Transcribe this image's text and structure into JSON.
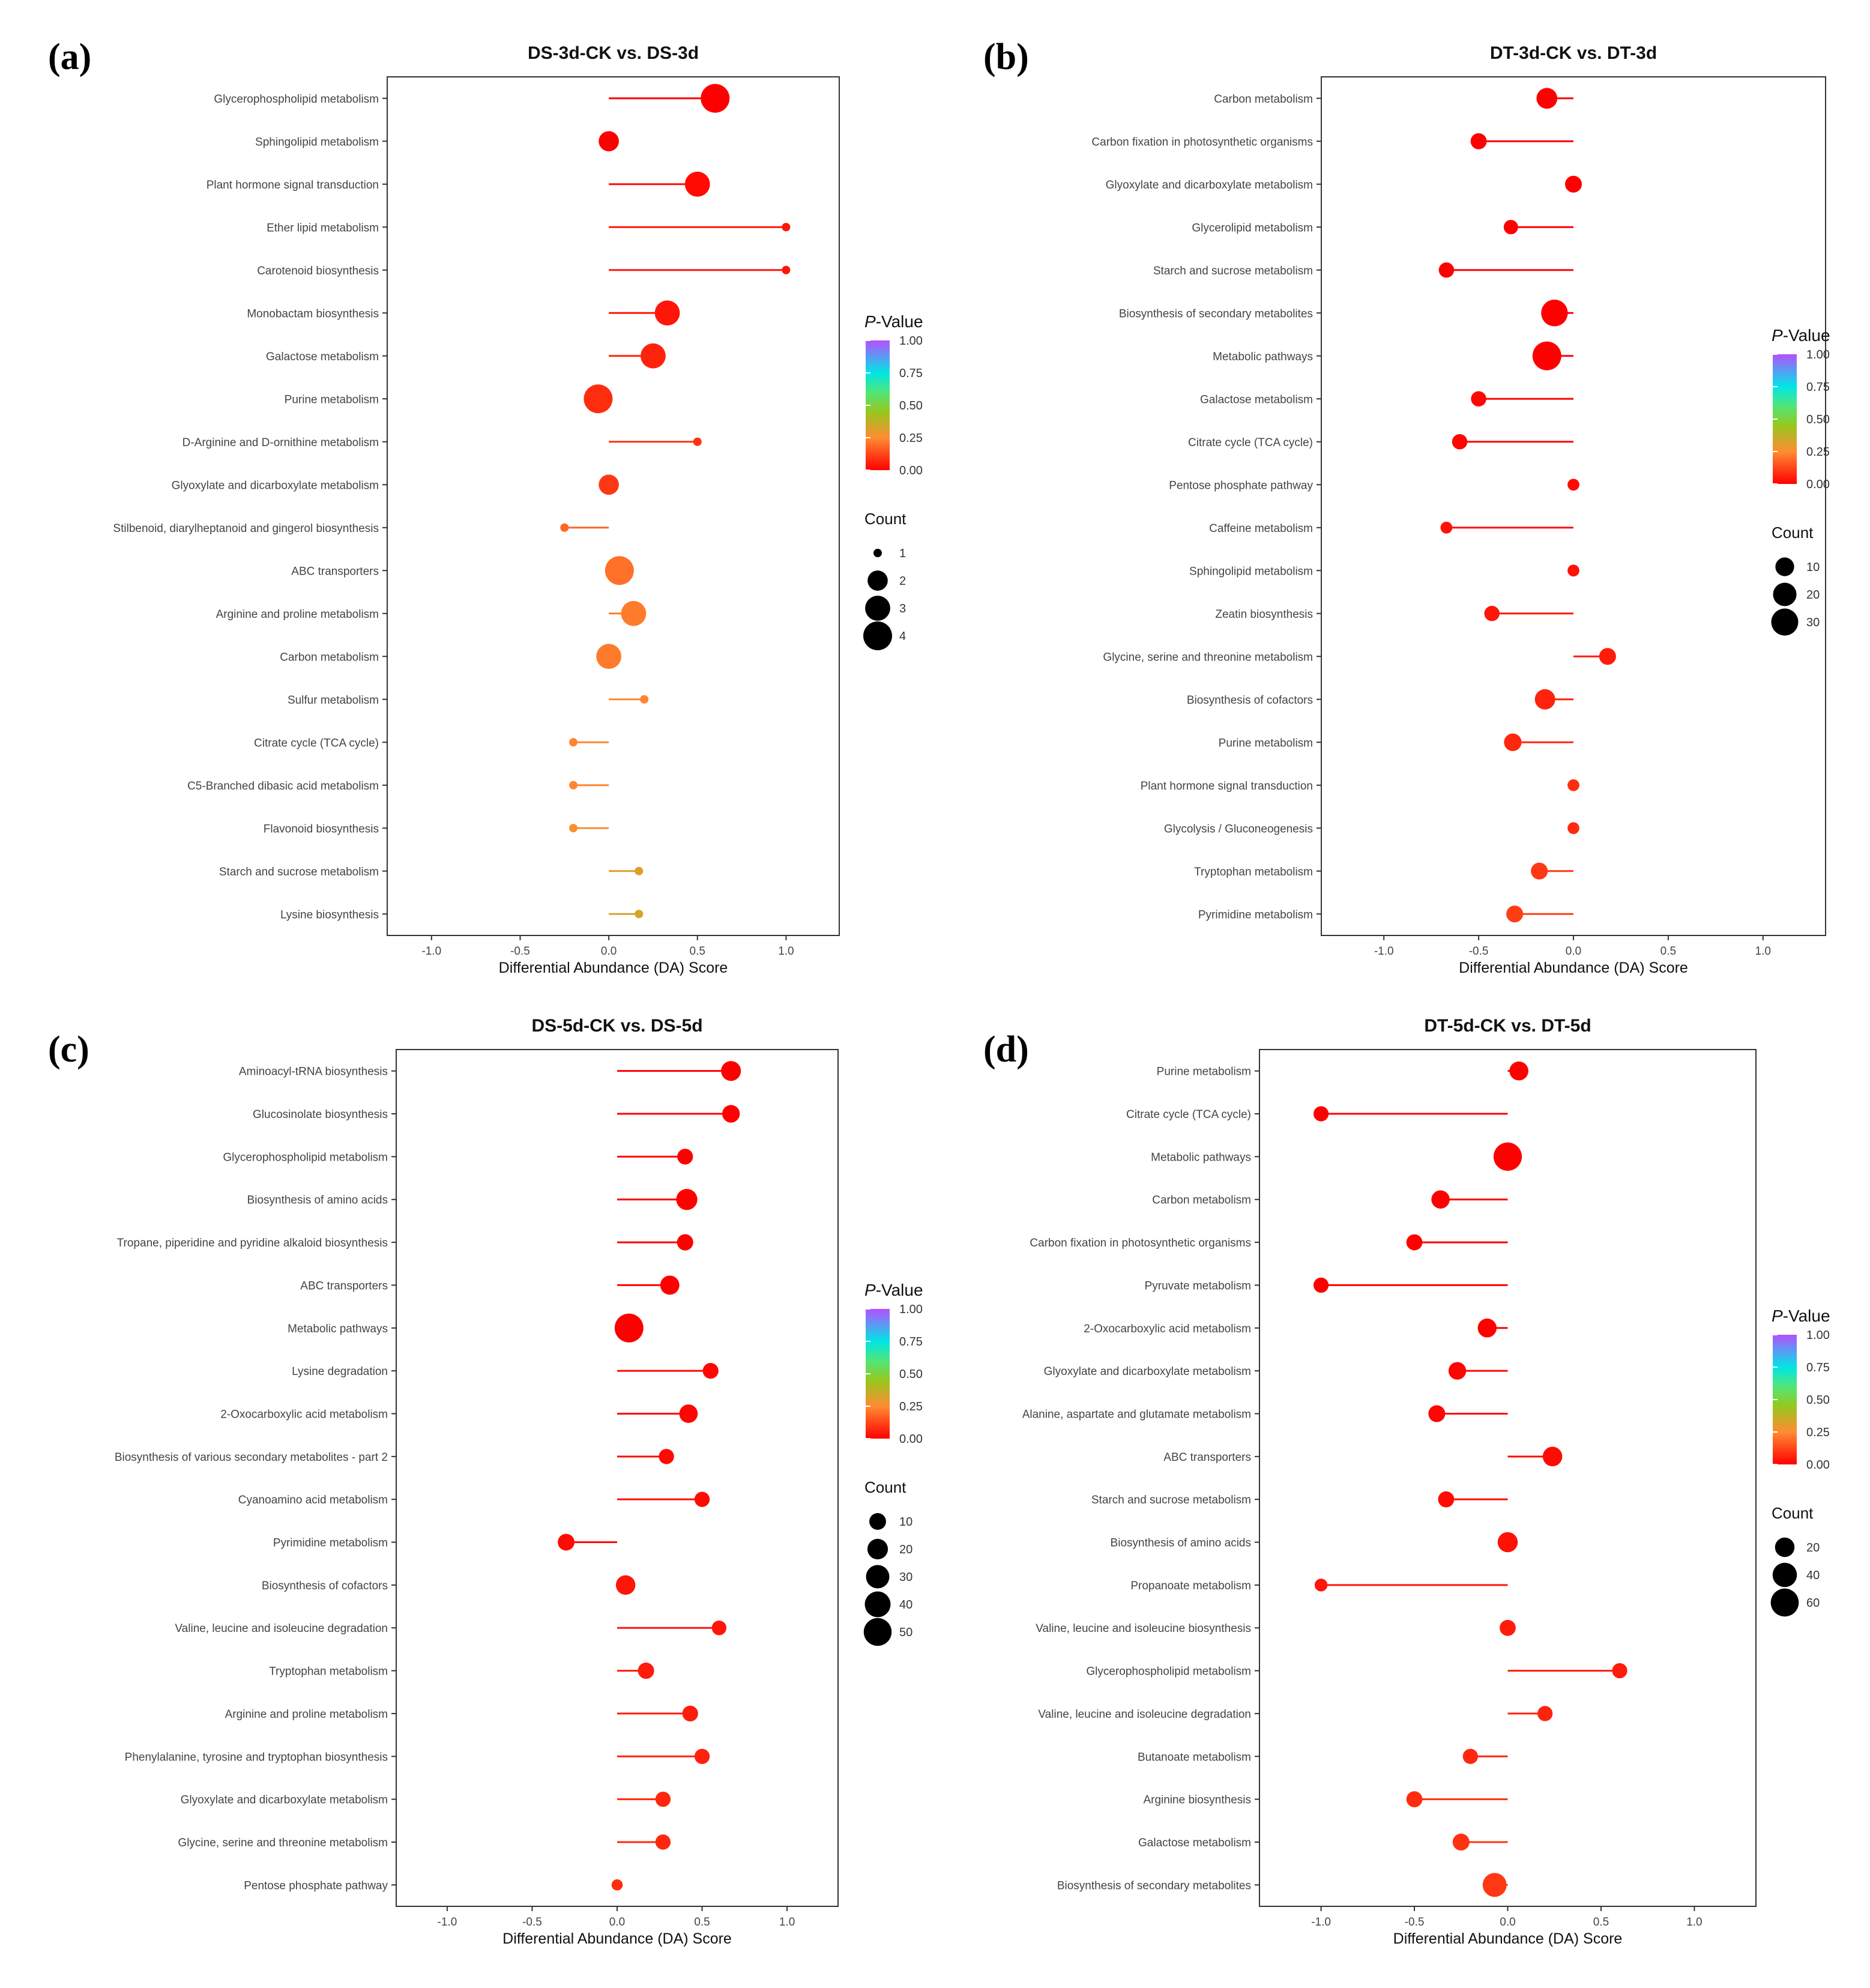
{
  "chart_data": [
    {
      "panel_label": "(a)",
      "type": "lollipop",
      "title": "DS-3d-CK vs. DS-3d",
      "xlabel": "Differential Abundance (DA) Score",
      "xlim": [
        -1.25,
        1.3
      ],
      "xticks": [
        -1.0,
        -0.5,
        0.0,
        0.5,
        1.0
      ],
      "xtick_labels": [
        "-1.0",
        "-0.5",
        "0.0",
        "0.5",
        "1.0"
      ],
      "legend": {
        "pvalue_title_italic": "P",
        "pvalue_title_rest": "-Value",
        "pvalue_ticks": [
          "1.00",
          "0.75",
          "0.50",
          "0.25",
          "0.00"
        ],
        "count_title": "Count",
        "count_values": [
          1,
          2,
          3,
          4
        ],
        "count_labels": [
          "1",
          "2",
          "3",
          "4"
        ],
        "size_range": [
          1,
          4
        ]
      },
      "points": [
        {
          "pathway": "Glycerophospholipid metabolism",
          "da": 0.6,
          "pvalue": 0.0,
          "count": 4
        },
        {
          "pathway": "Sphingolipid metabolism",
          "da": 0.0,
          "pvalue": 0.0,
          "count": 2
        },
        {
          "pathway": "Plant hormone signal transduction",
          "da": 0.5,
          "pvalue": 0.02,
          "count": 3
        },
        {
          "pathway": "Ether lipid metabolism",
          "da": 1.0,
          "pvalue": 0.04,
          "count": 1
        },
        {
          "pathway": "Carotenoid biosynthesis",
          "da": 1.0,
          "pvalue": 0.04,
          "count": 1
        },
        {
          "pathway": "Monobactam biosynthesis",
          "da": 0.33,
          "pvalue": 0.04,
          "count": 3
        },
        {
          "pathway": "Galactose metabolism",
          "da": 0.25,
          "pvalue": 0.06,
          "count": 3
        },
        {
          "pathway": "Purine metabolism",
          "da": -0.06,
          "pvalue": 0.08,
          "count": 4
        },
        {
          "pathway": "D-Arginine and D-ornithine metabolism",
          "da": 0.5,
          "pvalue": 0.09,
          "count": 1
        },
        {
          "pathway": "Glyoxylate and dicarboxylate metabolism",
          "da": 0.0,
          "pvalue": 0.1,
          "count": 2
        },
        {
          "pathway": "Stilbenoid, diarylheptanoid and gingerol biosynthesis",
          "da": -0.25,
          "pvalue": 0.18,
          "count": 1
        },
        {
          "pathway": "ABC transporters",
          "da": 0.06,
          "pvalue": 0.2,
          "count": 4
        },
        {
          "pathway": "Arginine and proline metabolism",
          "da": 0.14,
          "pvalue": 0.22,
          "count": 3
        },
        {
          "pathway": "Carbon metabolism",
          "da": 0.0,
          "pvalue": 0.22,
          "count": 3
        },
        {
          "pathway": "Sulfur metabolism",
          "da": 0.2,
          "pvalue": 0.24,
          "count": 1
        },
        {
          "pathway": "Citrate cycle (TCA cycle)",
          "da": -0.2,
          "pvalue": 0.24,
          "count": 1
        },
        {
          "pathway": "C5-Branched dibasic acid metabolism",
          "da": -0.2,
          "pvalue": 0.24,
          "count": 1
        },
        {
          "pathway": "Flavonoid biosynthesis",
          "da": -0.2,
          "pvalue": 0.26,
          "count": 1
        },
        {
          "pathway": "Starch and sucrose metabolism",
          "da": 0.17,
          "pvalue": 0.32,
          "count": 1
        },
        {
          "pathway": "Lysine biosynthesis",
          "da": 0.17,
          "pvalue": 0.33,
          "count": 1
        }
      ]
    },
    {
      "panel_label": "(b)",
      "type": "lollipop",
      "title": "DT-3d-CK vs. DT-3d",
      "xlabel": "Differential Abundance (DA) Score",
      "xlim": [
        -1.33,
        1.33
      ],
      "xticks": [
        -1.0,
        -0.5,
        0.0,
        0.5,
        1.0
      ],
      "xtick_labels": [
        "-1.0",
        "-0.5",
        "0.0",
        "0.5",
        "1.0"
      ],
      "legend": {
        "pvalue_title_italic": "P",
        "pvalue_title_rest": "-Value",
        "pvalue_ticks": [
          "1.00",
          "0.75",
          "0.50",
          "0.25",
          "0.00"
        ],
        "count_title": "Count",
        "count_values": [
          10,
          20,
          30
        ],
        "count_labels": [
          "10",
          "20",
          "30"
        ],
        "size_range": [
          1,
          36
        ]
      },
      "points": [
        {
          "pathway": "Carbon metabolism",
          "da": -0.14,
          "pvalue": 0.0,
          "count": 14
        },
        {
          "pathway": "Carbon fixation in photosynthetic organisms",
          "da": -0.5,
          "pvalue": 0.0,
          "count": 6
        },
        {
          "pathway": "Glyoxylate and dicarboxylate metabolism",
          "da": 0.0,
          "pvalue": 0.0,
          "count": 7
        },
        {
          "pathway": "Glycerolipid metabolism",
          "da": -0.33,
          "pvalue": 0.0,
          "count": 4
        },
        {
          "pathway": "Starch and sucrose metabolism",
          "da": -0.67,
          "pvalue": 0.0,
          "count": 5
        },
        {
          "pathway": "Biosynthesis of secondary metabolites",
          "da": -0.1,
          "pvalue": 0.0,
          "count": 29
        },
        {
          "pathway": "Metabolic pathways",
          "da": -0.14,
          "pvalue": 0.0,
          "count": 36
        },
        {
          "pathway": "Galactose metabolism",
          "da": -0.5,
          "pvalue": 0.01,
          "count": 5
        },
        {
          "pathway": "Citrate cycle (TCA cycle)",
          "da": -0.6,
          "pvalue": 0.01,
          "count": 5
        },
        {
          "pathway": "Pentose phosphate pathway",
          "da": 0.0,
          "pvalue": 0.02,
          "count": 2
        },
        {
          "pathway": "Caffeine metabolism",
          "da": -0.67,
          "pvalue": 0.03,
          "count": 2
        },
        {
          "pathway": "Sphingolipid metabolism",
          "da": 0.0,
          "pvalue": 0.03,
          "count": 2
        },
        {
          "pathway": "Zeatin biosynthesis",
          "da": -0.43,
          "pvalue": 0.04,
          "count": 5
        },
        {
          "pathway": "Glycine, serine and threonine metabolism",
          "da": 0.18,
          "pvalue": 0.05,
          "count": 7
        },
        {
          "pathway": "Biosynthesis of cofactors",
          "da": -0.15,
          "pvalue": 0.06,
          "count": 13
        },
        {
          "pathway": "Purine metabolism",
          "da": -0.32,
          "pvalue": 0.07,
          "count": 8
        },
        {
          "pathway": "Plant hormone signal transduction",
          "da": 0.0,
          "pvalue": 0.08,
          "count": 2
        },
        {
          "pathway": "Glycolysis / Gluconeogenesis",
          "da": 0.0,
          "pvalue": 0.08,
          "count": 2
        },
        {
          "pathway": "Tryptophan metabolism",
          "da": -0.18,
          "pvalue": 0.1,
          "count": 7
        },
        {
          "pathway": "Pyrimidine metabolism",
          "da": -0.31,
          "pvalue": 0.11,
          "count": 7
        }
      ]
    },
    {
      "panel_label": "(c)",
      "type": "lollipop",
      "title": "DS-5d-CK vs. DS-5d",
      "xlabel": "Differential Abundance (DA) Score",
      "xlim": [
        -1.3,
        1.3
      ],
      "xticks": [
        -1.0,
        -0.5,
        0.0,
        0.5,
        1.0
      ],
      "xtick_labels": [
        "-1.0",
        "-0.5",
        "0.0",
        "0.5",
        "1.0"
      ],
      "legend": {
        "pvalue_title_italic": "P",
        "pvalue_title_rest": "-Value",
        "pvalue_ticks": [
          "1.00",
          "0.75",
          "0.50",
          "0.25",
          "0.00"
        ],
        "count_title": "Count",
        "count_values": [
          10,
          20,
          30,
          40,
          50
        ],
        "count_labels": [
          "10",
          "20",
          "30",
          "40",
          "50"
        ],
        "size_range": [
          1,
          55
        ]
      },
      "points": [
        {
          "pathway": "Aminoacyl-tRNA biosynthesis",
          "da": 0.67,
          "pvalue": 0.0,
          "count": 18
        },
        {
          "pathway": "Glucosinolate biosynthesis",
          "da": 0.67,
          "pvalue": 0.0,
          "count": 12
        },
        {
          "pathway": "Glycerophospholipid metabolism",
          "da": 0.4,
          "pvalue": 0.0,
          "count": 8
        },
        {
          "pathway": "Biosynthesis of amino acids",
          "da": 0.41,
          "pvalue": 0.0,
          "count": 22
        },
        {
          "pathway": "Tropane, piperidine and pyridine alkaloid biosynthesis",
          "da": 0.4,
          "pvalue": 0.0,
          "count": 9
        },
        {
          "pathway": "ABC transporters",
          "da": 0.31,
          "pvalue": 0.0,
          "count": 16
        },
        {
          "pathway": "Metabolic pathways",
          "da": 0.07,
          "pvalue": 0.0,
          "count": 55
        },
        {
          "pathway": "Lysine degradation",
          "da": 0.55,
          "pvalue": 0.01,
          "count": 8
        },
        {
          "pathway": "2-Oxocarboxylic acid metabolism",
          "da": 0.42,
          "pvalue": 0.01,
          "count": 14
        },
        {
          "pathway": "Biosynthesis of various secondary metabolites - part 2",
          "da": 0.29,
          "pvalue": 0.02,
          "count": 7
        },
        {
          "pathway": "Cyanoamino acid metabolism",
          "da": 0.5,
          "pvalue": 0.02,
          "count": 7
        },
        {
          "pathway": "Pyrimidine metabolism",
          "da": -0.3,
          "pvalue": 0.02,
          "count": 10
        },
        {
          "pathway": "Biosynthesis of cofactors",
          "da": 0.05,
          "pvalue": 0.04,
          "count": 17
        },
        {
          "pathway": "Valine, leucine and isoleucine degradation",
          "da": 0.6,
          "pvalue": 0.04,
          "count": 6
        },
        {
          "pathway": "Tryptophan metabolism",
          "da": 0.17,
          "pvalue": 0.05,
          "count": 9
        },
        {
          "pathway": "Arginine and proline metabolism",
          "da": 0.43,
          "pvalue": 0.05,
          "count": 8
        },
        {
          "pathway": "Phenylalanine, tyrosine and tryptophan biosynthesis",
          "da": 0.5,
          "pvalue": 0.06,
          "count": 7
        },
        {
          "pathway": "Glyoxylate and dicarboxylate metabolism",
          "da": 0.27,
          "pvalue": 0.07,
          "count": 7
        },
        {
          "pathway": "Glycine, serine and threonine metabolism",
          "da": 0.27,
          "pvalue": 0.07,
          "count": 7
        },
        {
          "pathway": "Pentose phosphate pathway",
          "da": 0.0,
          "pvalue": 0.08,
          "count": 2
        }
      ]
    },
    {
      "panel_label": "(d)",
      "type": "lollipop",
      "title": "DT-5d-CK vs. DT-5d",
      "xlabel": "Differential Abundance (DA) Score",
      "xlim": [
        -1.33,
        1.33
      ],
      "xticks": [
        -1.0,
        -0.5,
        0.0,
        0.5,
        1.0
      ],
      "xtick_labels": [
        "-1.0",
        "-0.5",
        "0.0",
        "0.5",
        "1.0"
      ],
      "legend": {
        "pvalue_title_italic": "P",
        "pvalue_title_rest": "-Value",
        "pvalue_ticks": [
          "1.00",
          "0.75",
          "0.50",
          "0.25",
          "0.00"
        ],
        "count_title": "Count",
        "count_values": [
          20,
          40,
          60
        ],
        "count_labels": [
          "20",
          "40",
          "60"
        ],
        "size_range": [
          1,
          65
        ]
      },
      "points": [
        {
          "pathway": "Purine metabolism",
          "da": 0.06,
          "pvalue": 0.0,
          "count": 18
        },
        {
          "pathway": "Citrate cycle (TCA cycle)",
          "da": -1.0,
          "pvalue": 0.0,
          "count": 8
        },
        {
          "pathway": "Metabolic pathways",
          "da": 0.0,
          "pvalue": 0.0,
          "count": 62
        },
        {
          "pathway": "Carbon metabolism",
          "da": -0.36,
          "pvalue": 0.0,
          "count": 16
        },
        {
          "pathway": "Carbon fixation in photosynthetic organisms",
          "da": -0.5,
          "pvalue": 0.0,
          "count": 10
        },
        {
          "pathway": "Pyruvate metabolism",
          "da": -1.0,
          "pvalue": 0.0,
          "count": 8
        },
        {
          "pathway": "2-Oxocarboxylic acid metabolism",
          "da": -0.11,
          "pvalue": 0.0,
          "count": 18
        },
        {
          "pathway": "Glyoxylate and dicarboxylate metabolism",
          "da": -0.27,
          "pvalue": 0.01,
          "count": 14
        },
        {
          "pathway": "Alanine, aspartate and glutamate metabolism",
          "da": -0.38,
          "pvalue": 0.01,
          "count": 12
        },
        {
          "pathway": "ABC transporters",
          "da": 0.24,
          "pvalue": 0.02,
          "count": 20
        },
        {
          "pathway": "Starch and sucrose metabolism",
          "da": -0.33,
          "pvalue": 0.02,
          "count": 10
        },
        {
          "pathway": "Biosynthesis of amino acids",
          "da": 0.0,
          "pvalue": 0.03,
          "count": 22
        },
        {
          "pathway": "Propanoate metabolism",
          "da": -1.0,
          "pvalue": 0.04,
          "count": 4
        },
        {
          "pathway": "Valine, leucine and isoleucine biosynthesis",
          "da": 0.0,
          "pvalue": 0.05,
          "count": 10
        },
        {
          "pathway": "Glycerophospholipid metabolism",
          "da": 0.6,
          "pvalue": 0.05,
          "count": 8
        },
        {
          "pathway": "Valine, leucine and isoleucine degradation",
          "da": 0.2,
          "pvalue": 0.06,
          "count": 8
        },
        {
          "pathway": "Butanoate metabolism",
          "da": -0.2,
          "pvalue": 0.07,
          "count": 8
        },
        {
          "pathway": "Arginine biosynthesis",
          "da": -0.5,
          "pvalue": 0.08,
          "count": 10
        },
        {
          "pathway": "Galactose metabolism",
          "da": -0.25,
          "pvalue": 0.09,
          "count": 12
        },
        {
          "pathway": "Biosynthesis of secondary metabolites",
          "da": -0.07,
          "pvalue": 0.1,
          "count": 38
        }
      ]
    }
  ]
}
